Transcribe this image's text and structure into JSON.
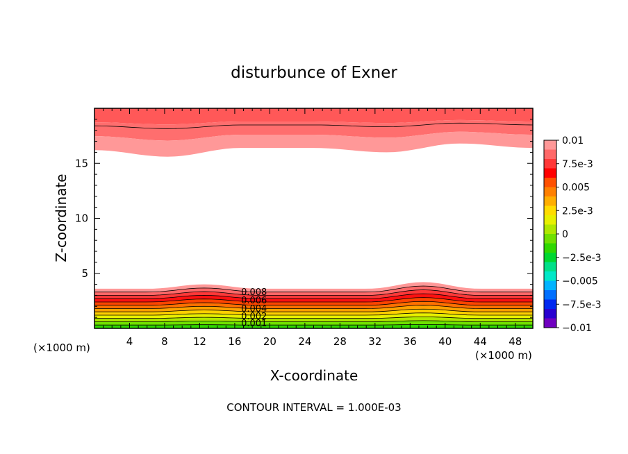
{
  "chart_data": {
    "type": "contour",
    "title": "disturbunce of Exner",
    "xlabel": "X-coordinate",
    "ylabel": "Z-coordinate",
    "x_unit_left": "(×1000 m)",
    "x_unit_right": "(×1000 m)",
    "xlim": [
      0,
      50
    ],
    "ylim": [
      0,
      20
    ],
    "x_ticks": [
      4,
      8,
      12,
      16,
      20,
      24,
      28,
      32,
      36,
      40,
      44,
      48
    ],
    "x_tick_labels": [
      "4",
      "8",
      "12",
      "16",
      "20",
      "24",
      "28",
      "32",
      "36",
      "40",
      "44",
      "48"
    ],
    "y_ticks": [
      5,
      10,
      15
    ],
    "y_tick_labels": [
      "5",
      "10",
      "15"
    ],
    "contour_interval_text": "CONTOUR INTERVAL = 1.000E-03",
    "contour_labels": [
      "0.008",
      "0.006",
      "0.004",
      "0.002",
      "0.001"
    ],
    "colorbar": {
      "range": [
        -0.01,
        0.01
      ],
      "tick_labels": [
        "0.01",
        "7.5e-3",
        "0.005",
        "2.5e-3",
        "0",
        "−2.5e-3",
        "−0.005",
        "−7.5e-3",
        "−0.01"
      ],
      "colors": [
        "#7b00c8",
        "#3a00d8",
        "#0000e8",
        "#0032ff",
        "#0078ff",
        "#00b4ff",
        "#00e0d0",
        "#00e8a0",
        "#00e050",
        "#10e000",
        "#60e000",
        "#a8e800",
        "#e8f000",
        "#ffd000",
        "#ffa000",
        "#ff7000",
        "#ff3000",
        "#ff0000",
        "#ff5050",
        "#ff9090"
      ]
    },
    "bottom_band_z_top_km": [
      3.6,
      3.6,
      4.0,
      3.6,
      3.6,
      3.6,
      4.2,
      3.6,
      3.6
    ],
    "top_band_z_bottom_km": [
      16.2,
      15.6,
      16.4,
      16.4,
      16.0,
      16.8,
      16.4
    ],
    "colorbar_bands": [
      "#ff9898",
      "#ff6868",
      "#ff3838",
      "#ff0000",
      "#ff5000",
      "#ff8000",
      "#ffae00",
      "#ffdc00",
      "#e8f000",
      "#b0e800",
      "#70e000",
      "#30d800",
      "#00d830",
      "#00e088",
      "#00e8c8",
      "#00b4ff",
      "#0070ff",
      "#0028f0",
      "#2800d0",
      "#7000c0"
    ]
  }
}
